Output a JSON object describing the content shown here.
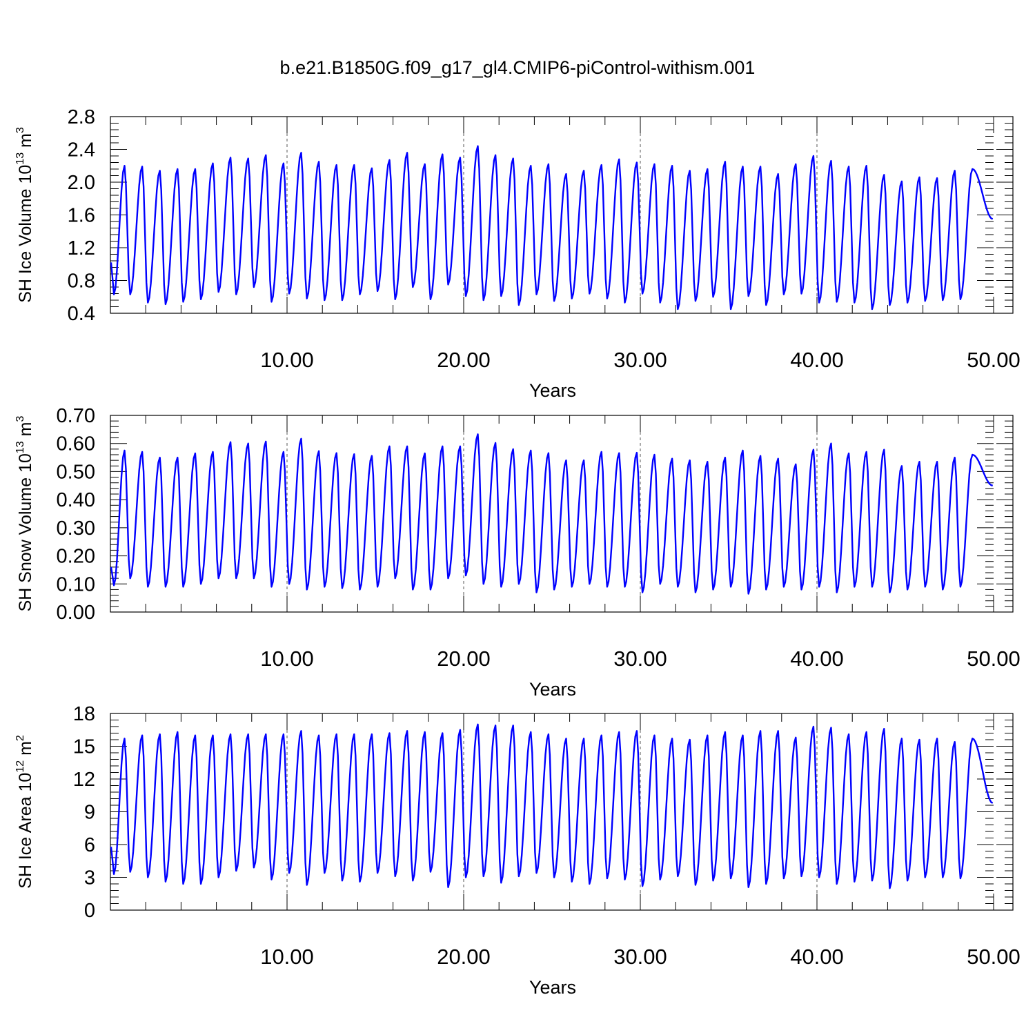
{
  "title": "b.e21.B1850G.f09_g17_gl4.CMIP6-piControl-withism.001",
  "chart_data": [
    {
      "type": "line",
      "title": "b.e21.B1850G.f09_g17_gl4.CMIP6-piControl-withism.001",
      "xlabel": "Years",
      "ylabel": {
        "base": "SH Ice Volume 10",
        "exp": "13",
        "unit": " m",
        "unit_exp": "3"
      },
      "xlim": [
        0,
        50
      ],
      "ylim": [
        0.4,
        2.8
      ],
      "yticks": [
        "0.4",
        "0.8",
        "1.2",
        "1.6",
        "2.0",
        "2.4",
        "2.8"
      ],
      "xticks": [
        "10.00",
        "20.00",
        "30.00",
        "40.00",
        "50.00"
      ],
      "x_start": 0.04,
      "start_value": 1.02,
      "end_value": 1.55,
      "series": [
        {
          "color": "#0000ff",
          "max": [
            2.2,
            2.19,
            2.14,
            2.16,
            2.16,
            2.23,
            2.3,
            2.29,
            2.33,
            2.23,
            2.36,
            2.25,
            2.21,
            2.21,
            2.17,
            2.27,
            2.36,
            2.22,
            2.34,
            2.3,
            2.44,
            2.33,
            2.29,
            2.2,
            2.22,
            2.1,
            2.14,
            2.21,
            2.28,
            2.24,
            2.22,
            2.2,
            2.14,
            2.16,
            2.25,
            2.19,
            2.19,
            2.1,
            2.22,
            2.32,
            2.26,
            2.19,
            2.2,
            2.09,
            2.01,
            2.06,
            2.05,
            2.14,
            2.16
          ],
          "min": [
            0.63,
            0.63,
            0.53,
            0.51,
            0.54,
            0.57,
            0.66,
            0.63,
            0.72,
            0.54,
            0.64,
            0.58,
            0.56,
            0.56,
            0.63,
            0.67,
            0.57,
            0.72,
            0.57,
            0.75,
            0.61,
            0.56,
            0.61,
            0.5,
            0.63,
            0.55,
            0.58,
            0.64,
            0.58,
            0.53,
            0.64,
            0.53,
            0.45,
            0.55,
            0.6,
            0.45,
            0.61,
            0.5,
            0.63,
            0.64,
            0.53,
            0.54,
            0.53,
            0.45,
            0.5,
            0.53,
            0.55,
            0.56,
            0.57
          ]
        }
      ]
    },
    {
      "type": "line",
      "xlabel": "Years",
      "ylabel": {
        "base": "SH Snow Volume 10",
        "exp": "13",
        "unit": " m",
        "unit_exp": "3"
      },
      "xlim": [
        0,
        50
      ],
      "ylim": [
        0,
        0.7
      ],
      "yticks": [
        "0.00",
        "0.10",
        "0.20",
        "0.30",
        "0.40",
        "0.50",
        "0.60",
        "0.70"
      ],
      "xticks": [
        "10.00",
        "20.00",
        "30.00",
        "40.00",
        "50.00"
      ],
      "x_start": 0.04,
      "start_value": 0.16,
      "end_value": 0.45,
      "series": [
        {
          "color": "#0000ff",
          "max": [
            0.575,
            0.57,
            0.55,
            0.55,
            0.565,
            0.57,
            0.605,
            0.6,
            0.607,
            0.57,
            0.617,
            0.573,
            0.566,
            0.562,
            0.556,
            0.59,
            0.59,
            0.565,
            0.59,
            0.59,
            0.633,
            0.602,
            0.58,
            0.575,
            0.566,
            0.54,
            0.54,
            0.57,
            0.566,
            0.567,
            0.56,
            0.546,
            0.54,
            0.535,
            0.55,
            0.575,
            0.556,
            0.546,
            0.526,
            0.578,
            0.6,
            0.565,
            0.57,
            0.578,
            0.52,
            0.535,
            0.535,
            0.55,
            0.56
          ],
          "min": [
            0.095,
            0.12,
            0.09,
            0.09,
            0.09,
            0.1,
            0.12,
            0.12,
            0.12,
            0.09,
            0.1,
            0.08,
            0.09,
            0.085,
            0.08,
            0.09,
            0.12,
            0.08,
            0.08,
            0.12,
            0.13,
            0.1,
            0.09,
            0.1,
            0.07,
            0.08,
            0.09,
            0.1,
            0.09,
            0.09,
            0.07,
            0.1,
            0.09,
            0.07,
            0.08,
            0.09,
            0.065,
            0.08,
            0.09,
            0.08,
            0.09,
            0.07,
            0.09,
            0.09,
            0.07,
            0.08,
            0.09,
            0.08,
            0.09
          ]
        }
      ]
    },
    {
      "type": "line",
      "xlabel": "Years",
      "ylabel": {
        "base": "SH Ice Area 10",
        "exp": "12",
        "unit": " m",
        "unit_exp": "2"
      },
      "xlim": [
        0,
        50
      ],
      "ylim": [
        0,
        18
      ],
      "yticks": [
        "0",
        "3",
        "6",
        "9",
        "12",
        "15",
        "18"
      ],
      "xticks": [
        "10.00",
        "20.00",
        "30.00",
        "40.00",
        "50.00"
      ],
      "x_start": 0.04,
      "start_value": 5.8,
      "end_value": 9.8,
      "series": [
        {
          "color": "#0000ff",
          "max": [
            15.7,
            16.0,
            16.1,
            16.3,
            16.0,
            16.0,
            16.1,
            16.1,
            16.1,
            16.1,
            16.4,
            16.0,
            16.1,
            16.1,
            16.1,
            16.2,
            16.4,
            16.3,
            16.2,
            16.5,
            17.0,
            16.9,
            16.9,
            16.3,
            16.1,
            15.7,
            15.7,
            16.0,
            16.3,
            16.4,
            16.0,
            15.7,
            15.6,
            16.0,
            16.3,
            16.0,
            16.4,
            16.4,
            15.8,
            16.8,
            16.7,
            16.1,
            16.3,
            16.6,
            15.7,
            15.6,
            15.7,
            15.4,
            15.7
          ],
          "min": [
            3.3,
            3.5,
            3.0,
            2.6,
            2.4,
            2.4,
            3.0,
            3.6,
            3.9,
            2.8,
            3.4,
            2.3,
            3.4,
            2.7,
            2.6,
            3.4,
            3.1,
            2.7,
            3.5,
            2.1,
            3.0,
            3.1,
            2.5,
            3.1,
            3.4,
            3.0,
            2.6,
            2.4,
            2.9,
            2.8,
            2.2,
            2.8,
            3.1,
            2.3,
            2.7,
            2.9,
            2.1,
            2.4,
            2.9,
            3.1,
            3.0,
            2.4,
            2.6,
            2.7,
            2.0,
            2.7,
            3.0,
            3.0,
            2.9
          ]
        }
      ]
    }
  ]
}
